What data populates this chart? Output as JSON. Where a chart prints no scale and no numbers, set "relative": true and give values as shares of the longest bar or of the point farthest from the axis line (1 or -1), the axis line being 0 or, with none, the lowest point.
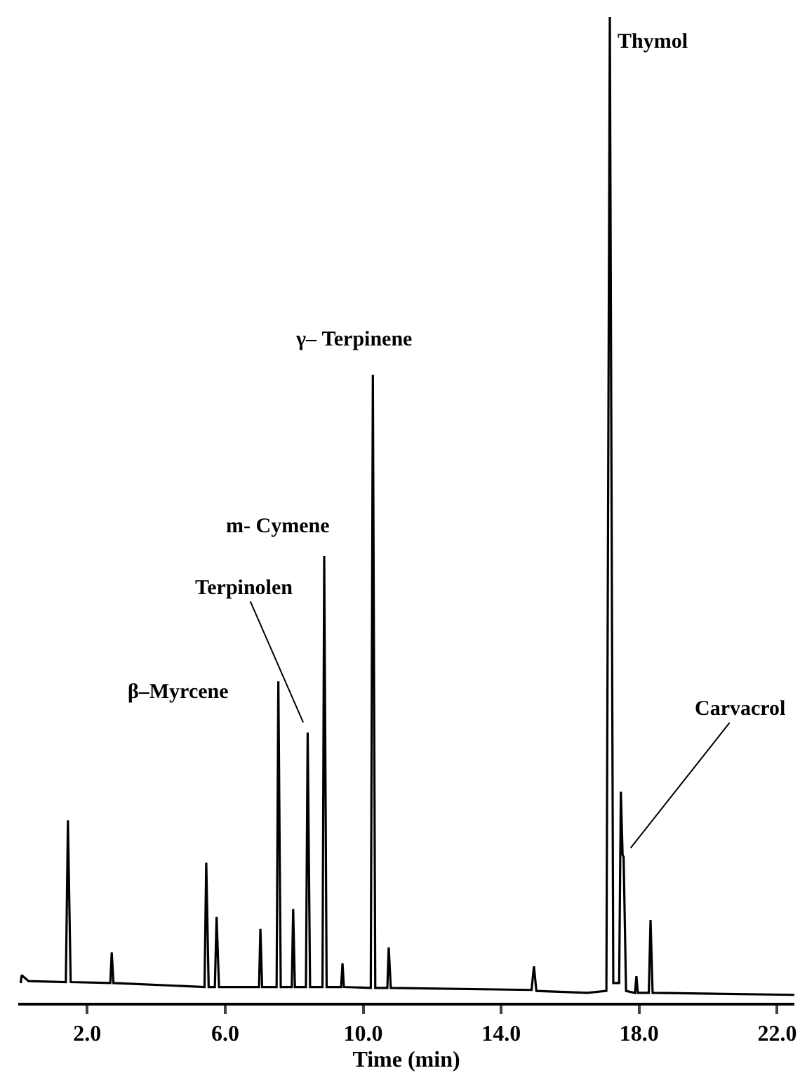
{
  "chart_data": {
    "type": "line",
    "relative": true,
    "xlabel": "Time (min)",
    "xlim": [
      0,
      22.5
    ],
    "xticks": [
      {
        "value": 2,
        "label": "2.0"
      },
      {
        "value": 6,
        "label": "6.0"
      },
      {
        "value": 10,
        "label": "10.0"
      },
      {
        "value": 14,
        "label": "14.0"
      },
      {
        "value": 18,
        "label": "18.0"
      },
      {
        "value": 22,
        "label": "22.0"
      }
    ],
    "marker": "none",
    "line_style": "solid",
    "series": [
      {
        "color": "#000000",
        "x": [
          0.07,
          0.1,
          0.3,
          1.38,
          1.44,
          1.52,
          2.67,
          2.71,
          2.76,
          5.4,
          5.45,
          5.52,
          5.7,
          5.75,
          5.82,
          6.98,
          7.02,
          7.07,
          7.49,
          7.54,
          7.61,
          7.93,
          7.97,
          8.02,
          8.34,
          8.39,
          8.46,
          8.82,
          8.87,
          8.94,
          9.36,
          9.4,
          9.44,
          10.22,
          10.28,
          10.35,
          10.7,
          10.74,
          10.8,
          14.88,
          14.95,
          15.02,
          16.5,
          17.05,
          17.15,
          17.25,
          17.42,
          17.47,
          17.52,
          17.55,
          17.62,
          17.88,
          17.92,
          17.96,
          18.28,
          18.33,
          18.39,
          22.5
        ],
        "values": [
          0.02,
          0.028,
          0.022,
          0.021,
          0.185,
          0.021,
          0.02,
          0.051,
          0.02,
          0.016,
          0.142,
          0.016,
          0.016,
          0.087,
          0.016,
          0.016,
          0.075,
          0.016,
          0.016,
          0.326,
          0.016,
          0.016,
          0.095,
          0.016,
          0.016,
          0.274,
          0.016,
          0.016,
          0.453,
          0.016,
          0.016,
          0.04,
          0.016,
          0.015,
          0.637,
          0.015,
          0.015,
          0.056,
          0.015,
          0.013,
          0.037,
          0.012,
          0.01,
          0.012,
          1.0,
          0.02,
          0.02,
          0.214,
          0.15,
          0.148,
          0.012,
          0.01,
          0.027,
          0.01,
          0.01,
          0.084,
          0.01,
          0.008
        ]
      }
    ],
    "annotations": [
      {
        "text": "β–Myrcene",
        "x": 7.54,
        "y": 0.326
      },
      {
        "text": "Terpinolen",
        "x": 8.39,
        "y": 0.274
      },
      {
        "text": "m- Cymene",
        "x": 8.87,
        "y": 0.453
      },
      {
        "text": "γ– Terpinene",
        "x": 10.28,
        "y": 0.637
      },
      {
        "text": "Thymol",
        "x": 17.15,
        "y": 1.0
      },
      {
        "text": "Carvacrol",
        "x": 17.55,
        "y": 0.148
      }
    ]
  }
}
